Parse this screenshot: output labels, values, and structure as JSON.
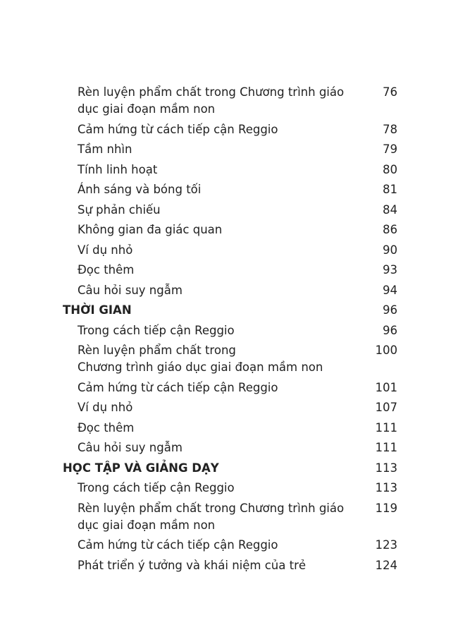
{
  "toc": [
    {
      "level": "sub",
      "lines": [
        "Rèn luyện phẩm chất trong Chương trình giáo",
        "dục giai đoạn mầm non"
      ],
      "page": "76"
    },
    {
      "level": "sub",
      "lines": [
        "Cảm hứng từ cách tiếp cận Reggio"
      ],
      "page": "78"
    },
    {
      "level": "sub",
      "lines": [
        "Tầm nhìn"
      ],
      "page": "79"
    },
    {
      "level": "sub",
      "lines": [
        "Tính linh hoạt"
      ],
      "page": "80"
    },
    {
      "level": "sub",
      "lines": [
        "Ánh sáng và bóng tối"
      ],
      "page": "81"
    },
    {
      "level": "sub",
      "lines": [
        "Sự phản chiếu"
      ],
      "page": "84"
    },
    {
      "level": "sub",
      "lines": [
        "Không gian đa giác quan"
      ],
      "page": "86"
    },
    {
      "level": "sub",
      "lines": [
        "Ví dụ nhỏ"
      ],
      "page": "90"
    },
    {
      "level": "sub",
      "lines": [
        "Đọc thêm"
      ],
      "page": "93"
    },
    {
      "level": "sub",
      "lines": [
        "Câu hỏi suy ngẫm"
      ],
      "page": "94"
    },
    {
      "level": "chap",
      "lines": [
        "THỜI GIAN"
      ],
      "page": "96"
    },
    {
      "level": "sub",
      "lines": [
        "Trong cách tiếp cận Reggio"
      ],
      "page": "96"
    },
    {
      "level": "sub",
      "lines": [
        "Rèn luyện phẩm chất trong",
        "Chương trình giáo dục giai đoạn mầm non"
      ],
      "page": "100"
    },
    {
      "level": "sub",
      "lines": [
        "Cảm hứng từ cách tiếp cận Reggio"
      ],
      "page": "101"
    },
    {
      "level": "sub",
      "lines": [
        "Ví dụ nhỏ"
      ],
      "page": "107"
    },
    {
      "level": "sub",
      "lines": [
        "Đọc thêm"
      ],
      "page": "111"
    },
    {
      "level": "sub",
      "lines": [
        "Câu hỏi suy ngẫm"
      ],
      "page": "111"
    },
    {
      "level": "chap",
      "lines": [
        "HỌC TẬP VÀ GIẢNG DẠY"
      ],
      "page": "113"
    },
    {
      "level": "sub",
      "lines": [
        "Trong cách tiếp cận Reggio"
      ],
      "page": "113"
    },
    {
      "level": "sub",
      "lines": [
        "Rèn luyện phẩm chất trong Chương trình giáo",
        "dục giai đoạn mầm non"
      ],
      "page": "119"
    },
    {
      "level": "sub",
      "lines": [
        "Cảm hứng từ cách tiếp cận Reggio"
      ],
      "page": "123"
    },
    {
      "level": "sub",
      "lines": [
        "Phát triển ý tưởng và khái niệm của trẻ"
      ],
      "page": "124"
    }
  ]
}
